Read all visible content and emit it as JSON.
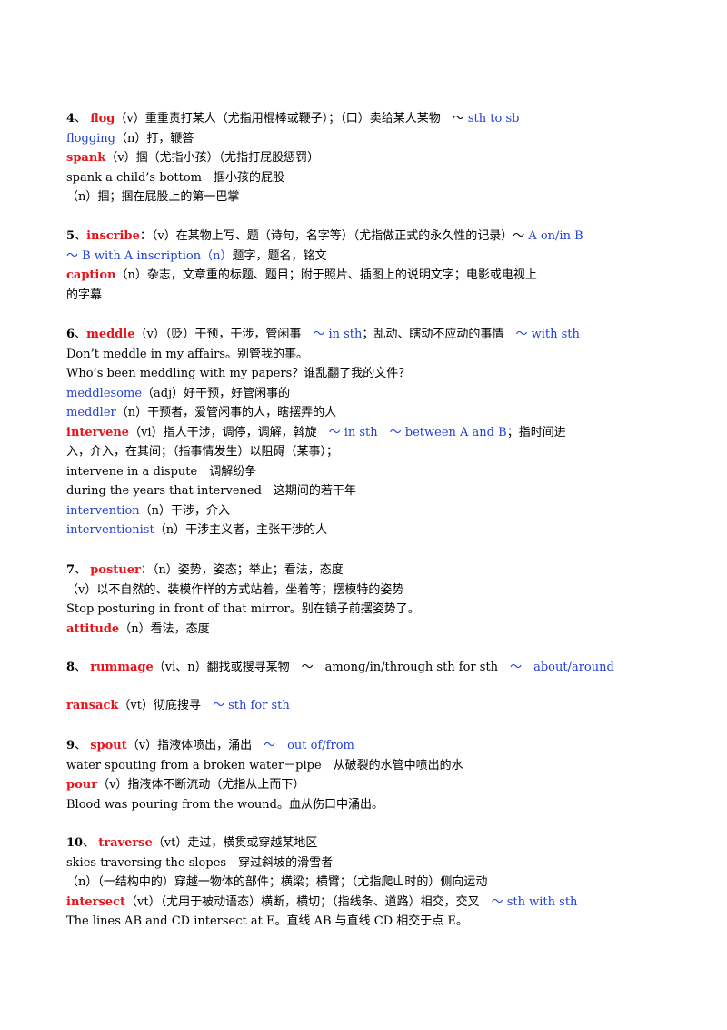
{
  "entries": [
    {
      "lines": [
        [
          {
            "t": "4",
            "s": "num"
          },
          {
            "t": "、 ",
            "s": ""
          },
          {
            "t": "flog",
            "s": "kw"
          },
          {
            "t": "（v）重重责打某人（尤指用棍棒或鞭子）；（口）卖给某人某物　～ ",
            "s": ""
          },
          {
            "t": "sth to sb",
            "s": "blue"
          }
        ],
        [
          {
            "t": "flogging",
            "s": "blue"
          },
          {
            "t": "（n）打，鞭答",
            "s": ""
          }
        ],
        [
          {
            "t": "spank",
            "s": "kw"
          },
          {
            "t": "（v）掴（尤指小孩）（尤指打屁股惩罚）",
            "s": ""
          }
        ],
        [
          {
            "t": "spank a child’s bottom　掴小孩的屁股",
            "s": ""
          }
        ],
        [
          {
            "t": "（n）掴；掴在屁股上的第一巴掌",
            "s": ""
          }
        ]
      ]
    },
    {
      "lines": [
        [
          {
            "t": "5",
            "s": "num"
          },
          {
            "t": "、",
            "s": ""
          },
          {
            "t": "inscribe",
            "s": "kw"
          },
          {
            "t": "：（v）在某物上写、题（诗句，名字等）（尤指做正式的永久性的记录）～ ",
            "s": ""
          },
          {
            "t": "A on/in B",
            "s": "blue"
          }
        ],
        [
          {
            "t": "～ B with A inscription（n）",
            "s": "blue"
          },
          {
            "t": "题字，题名，铭文",
            "s": ""
          }
        ],
        [
          {
            "t": "caption",
            "s": "kw"
          },
          {
            "t": "（n）杂志，文章重的标题、题目；附于照片、插图上的说明文字；电影或电视上",
            "s": ""
          }
        ],
        [
          {
            "t": "的字幕",
            "s": ""
          }
        ]
      ]
    },
    {
      "lines": [
        [
          {
            "t": "6",
            "s": "num"
          },
          {
            "t": "、",
            "s": ""
          },
          {
            "t": "meddle",
            "s": "kw"
          },
          {
            "t": "（v）（贬）干预，干涉，管闲事　",
            "s": ""
          },
          {
            "t": "～ in sth",
            "s": "blue"
          },
          {
            "t": "；乱动、瞎动不应动的事情　",
            "s": ""
          },
          {
            "t": "～ with sth",
            "s": "blue"
          }
        ],
        [
          {
            "t": "Don’t meddle in my affairs。别管我的事。",
            "s": ""
          }
        ],
        [
          {
            "t": "Who’s been meddling with my papers？谁乱翻了我的文件？",
            "s": ""
          }
        ],
        [
          {
            "t": "meddlesome",
            "s": "blue"
          },
          {
            "t": "（adj）好干预，好管闲事的",
            "s": ""
          }
        ],
        [
          {
            "t": "meddler",
            "s": "blue"
          },
          {
            "t": "（n）干预者，爱管闲事的人，瞎摆弄的人",
            "s": ""
          }
        ],
        [
          {
            "t": "intervene",
            "s": "kw"
          },
          {
            "t": "（vi）指人干涉，调停，调解，斡旋　",
            "s": ""
          },
          {
            "t": "～ in sth　～ between A and B",
            "s": "blue"
          },
          {
            "t": "；指时间进",
            "s": ""
          }
        ],
        [
          {
            "t": "入，介入，在其间；（指事情发生）以阻碍（某事）；",
            "s": ""
          }
        ],
        [
          {
            "t": "intervene in a dispute　调解纷争",
            "s": ""
          }
        ],
        [
          {
            "t": "during the years that intervened　这期间的若干年",
            "s": ""
          }
        ],
        [
          {
            "t": "intervention",
            "s": "blue"
          },
          {
            "t": "（n）干涉，介入",
            "s": ""
          }
        ],
        [
          {
            "t": "interventionist",
            "s": "blue"
          },
          {
            "t": "（n）干涉主义者，主张干涉的人",
            "s": ""
          }
        ]
      ]
    },
    {
      "lines": [
        [
          {
            "t": "7",
            "s": "num"
          },
          {
            "t": "、 ",
            "s": ""
          },
          {
            "t": "postuer",
            "s": "kw"
          },
          {
            "t": "：（n）姿势，姿态；举止；看法，态度",
            "s": ""
          }
        ],
        [
          {
            "t": "（v）以不自然的、装模作样的方式站着，坐着等；摆模特的姿势",
            "s": ""
          }
        ],
        [
          {
            "t": "Stop posturing in front of that mirror。别在镜子前摆姿势了。",
            "s": ""
          }
        ],
        [
          {
            "t": "attitude",
            "s": "kw"
          },
          {
            "t": "（n）看法，态度",
            "s": ""
          }
        ]
      ]
    },
    {
      "lines": [
        [
          {
            "t": "8",
            "s": "num"
          },
          {
            "t": "、 ",
            "s": ""
          },
          {
            "t": "rummage",
            "s": "kw"
          },
          {
            "t": "（vi、n）翻找或搜寻某物　～　among/in/through sth for sth　",
            "s": ""
          },
          {
            "t": "～　about/around",
            "s": "blue"
          }
        ]
      ]
    },
    {
      "lines": [
        [
          {
            "t": "ransack",
            "s": "kw"
          },
          {
            "t": "（vt）彻底搜寻　",
            "s": ""
          },
          {
            "t": "～ sth for sth",
            "s": "blue"
          }
        ]
      ]
    },
    {
      "lines": [
        [
          {
            "t": "9",
            "s": "num"
          },
          {
            "t": "、 ",
            "s": ""
          },
          {
            "t": "spout",
            "s": "kw"
          },
          {
            "t": "（v）指液体喷出，涌出　",
            "s": ""
          },
          {
            "t": "～　out of/from",
            "s": "blue"
          }
        ],
        [
          {
            "t": "water spouting from a broken water－pipe　从破裂的水管中喷出的水",
            "s": ""
          }
        ],
        [
          {
            "t": "pour",
            "s": "kw"
          },
          {
            "t": "（v）指液体不断流动（尤指从上而下）",
            "s": ""
          }
        ],
        [
          {
            "t": "Blood was pouring from the wound。血从伤口中涌出。",
            "s": ""
          }
        ]
      ]
    },
    {
      "lines": [
        [
          {
            "t": "10",
            "s": "num"
          },
          {
            "t": "、 ",
            "s": ""
          },
          {
            "t": "traverse",
            "s": "kw"
          },
          {
            "t": "（vt）走过，横贯或穿越某地区",
            "s": ""
          }
        ],
        [
          {
            "t": "skies traversing the slopes　穿过斜坡的滑雪者",
            "s": ""
          }
        ],
        [
          {
            "t": "（n）（一结构中的）穿越一物体的部件；横梁；横臂；（尤指爬山时的）侧向运动",
            "s": ""
          }
        ],
        [
          {
            "t": "intersect",
            "s": "kw"
          },
          {
            "t": "（vt）（尤用于被动语态）横断，横切；（指线条、道路）相交，交叉　",
            "s": ""
          },
          {
            "t": "～ sth with sth",
            "s": "blue"
          }
        ],
        [
          {
            "t": "The lines AB and CD intersect at E。直线 AB 与直线 CD 相交于点 E。",
            "s": ""
          }
        ]
      ]
    }
  ]
}
